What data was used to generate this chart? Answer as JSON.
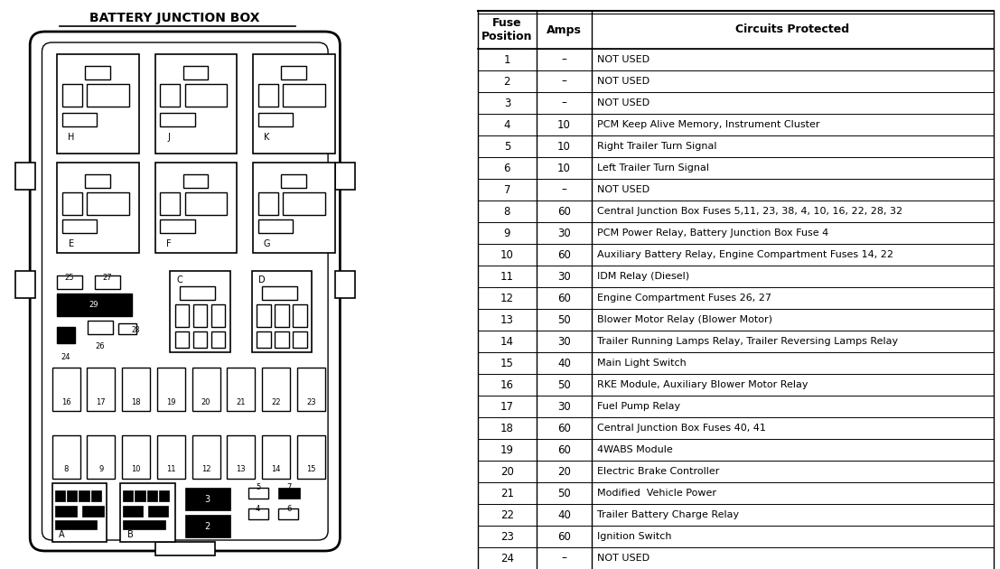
{
  "title": "BATTERY JUNCTION BOX",
  "table_header": [
    "Fuse\nPosition",
    "Amps",
    "Circuits Protected"
  ],
  "table_data": [
    [
      "1",
      "–",
      "NOT USED"
    ],
    [
      "2",
      "–",
      "NOT USED"
    ],
    [
      "3",
      "–",
      "NOT USED"
    ],
    [
      "4",
      "10",
      "PCM Keep Alive Memory, Instrument Cluster"
    ],
    [
      "5",
      "10",
      "Right Trailer Turn Signal"
    ],
    [
      "6",
      "10",
      "Left Trailer Turn Signal"
    ],
    [
      "7",
      "–",
      "NOT USED"
    ],
    [
      "8",
      "60",
      "Central Junction Box Fuses 5,11, 23, 38, 4, 10, 16, 22, 28, 32"
    ],
    [
      "9",
      "30",
      "PCM Power Relay, Battery Junction Box Fuse 4"
    ],
    [
      "10",
      "60",
      "Auxiliary Battery Relay, Engine Compartment Fuses 14, 22"
    ],
    [
      "11",
      "30",
      "IDM Relay (Diesel)"
    ],
    [
      "12",
      "60",
      "Engine Compartment Fuses 26, 27"
    ],
    [
      "13",
      "50",
      "Blower Motor Relay (Blower Motor)"
    ],
    [
      "14",
      "30",
      "Trailer Running Lamps Relay, Trailer Reversing Lamps Relay"
    ],
    [
      "15",
      "40",
      "Main Light Switch"
    ],
    [
      "16",
      "50",
      "RKE Module, Auxiliary Blower Motor Relay"
    ],
    [
      "17",
      "30",
      "Fuel Pump Relay"
    ],
    [
      "18",
      "60",
      "Central Junction Box Fuses 40, 41"
    ],
    [
      "19",
      "60",
      "4WABS Module"
    ],
    [
      "20",
      "20",
      "Electric Brake Controller"
    ],
    [
      "21",
      "50",
      "Modified  Vehicle Power"
    ],
    [
      "22",
      "40",
      "Trailer Battery Charge Relay"
    ],
    [
      "23",
      "60",
      "Ignition Switch"
    ],
    [
      "24",
      "–",
      "NOT USED"
    ]
  ],
  "bg_color": "#ffffff",
  "text_color": "#000000",
  "line_color": "#000000"
}
